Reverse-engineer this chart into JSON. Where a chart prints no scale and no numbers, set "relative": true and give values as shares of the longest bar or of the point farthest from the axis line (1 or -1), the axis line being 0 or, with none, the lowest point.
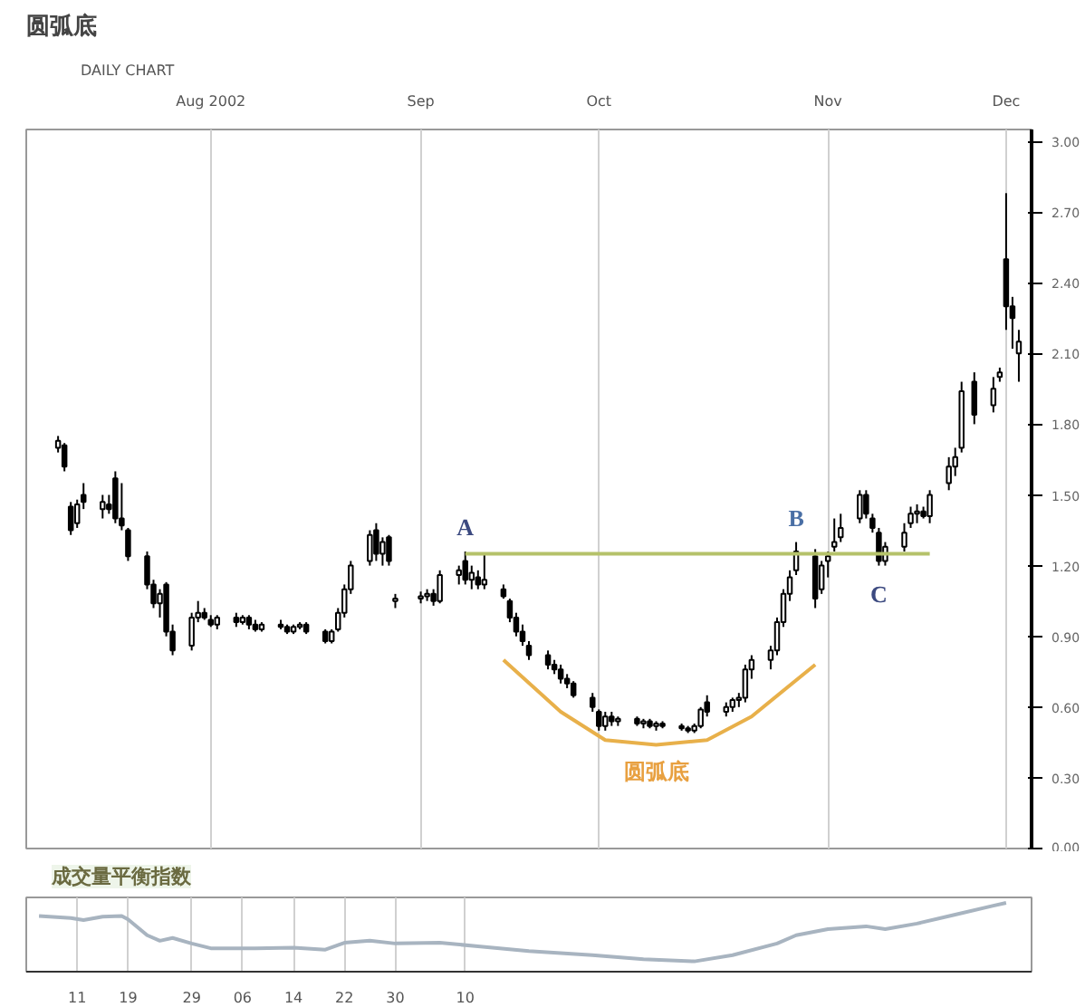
{
  "chart_data": [
    {
      "type": "candlestick",
      "title": "圆弧底",
      "subtitle": "DAILY CHART",
      "color": "#000000",
      "x": [
        "2002-07-08",
        "2002-07-09",
        "2002-07-10",
        "2002-07-11",
        "2002-07-12",
        "2002-07-15",
        "2002-07-16",
        "2002-07-17",
        "2002-07-18",
        "2002-07-19",
        "2002-07-22",
        "2002-07-23",
        "2002-07-24",
        "2002-07-25",
        "2002-07-26",
        "2002-07-29",
        "2002-07-30",
        "2002-07-31",
        "2002-08-01",
        "2002-08-02",
        "2002-08-05",
        "2002-08-06",
        "2002-08-07",
        "2002-08-08",
        "2002-08-09",
        "2002-08-12",
        "2002-08-13",
        "2002-08-14",
        "2002-08-15",
        "2002-08-16",
        "2002-08-19",
        "2002-08-20",
        "2002-08-21",
        "2002-08-22",
        "2002-08-23",
        "2002-08-26",
        "2002-08-27",
        "2002-08-28",
        "2002-08-29",
        "2002-08-30",
        "2002-09-03",
        "2002-09-04",
        "2002-09-05",
        "2002-09-06",
        "2002-09-09",
        "2002-09-10",
        "2002-09-11",
        "2002-09-12",
        "2002-09-13",
        "2002-09-16",
        "2002-09-17",
        "2002-09-18",
        "2002-09-19",
        "2002-09-20",
        "2002-09-23",
        "2002-09-24",
        "2002-09-25",
        "2002-09-26",
        "2002-09-27",
        "2002-09-30",
        "2002-10-01",
        "2002-10-02",
        "2002-10-03",
        "2002-10-04",
        "2002-10-07",
        "2002-10-08",
        "2002-10-09",
        "2002-10-10",
        "2002-10-11",
        "2002-10-14",
        "2002-10-15",
        "2002-10-16",
        "2002-10-17",
        "2002-10-18",
        "2002-10-21",
        "2002-10-22",
        "2002-10-23",
        "2002-10-24",
        "2002-10-25",
        "2002-10-28",
        "2002-10-29",
        "2002-10-30",
        "2002-10-31",
        "2002-11-01",
        "2002-11-04",
        "2002-11-05",
        "2002-11-06",
        "2002-11-07",
        "2002-11-08",
        "2002-11-11",
        "2002-11-12",
        "2002-11-13",
        "2002-11-14",
        "2002-11-15",
        "2002-11-18",
        "2002-11-19",
        "2002-11-20",
        "2002-11-21",
        "2002-11-22",
        "2002-11-25",
        "2002-11-26",
        "2002-11-27",
        "2002-11-29",
        "2002-12-02",
        "2002-12-03",
        "2002-12-04",
        "2002-12-05",
        "2002-12-06"
      ],
      "ohlc": [
        [
          1.7,
          1.75,
          1.68,
          1.73
        ],
        [
          1.71,
          1.72,
          1.6,
          1.62
        ],
        [
          1.45,
          1.47,
          1.33,
          1.35
        ],
        [
          1.38,
          1.48,
          1.36,
          1.46
        ],
        [
          1.5,
          1.55,
          1.44,
          1.47
        ],
        [
          1.44,
          1.5,
          1.4,
          1.47
        ],
        [
          1.46,
          1.5,
          1.42,
          1.44
        ],
        [
          1.57,
          1.6,
          1.38,
          1.4
        ],
        [
          1.4,
          1.55,
          1.35,
          1.37
        ],
        [
          1.35,
          1.36,
          1.22,
          1.24
        ],
        [
          1.24,
          1.26,
          1.1,
          1.12
        ],
        [
          1.12,
          1.14,
          1.02,
          1.04
        ],
        [
          1.04,
          1.1,
          0.98,
          1.08
        ],
        [
          1.12,
          1.13,
          0.9,
          0.92
        ],
        [
          0.92,
          0.95,
          0.82,
          0.84
        ],
        [
          0.86,
          1.0,
          0.84,
          0.98
        ],
        [
          0.98,
          1.05,
          0.96,
          1.0
        ],
        [
          1.0,
          1.02,
          0.97,
          0.98
        ],
        [
          0.97,
          0.99,
          0.94,
          0.95
        ],
        [
          0.95,
          0.99,
          0.93,
          0.98
        ],
        [
          0.98,
          1.0,
          0.94,
          0.96
        ],
        [
          0.96,
          0.99,
          0.95,
          0.98
        ],
        [
          0.98,
          0.99,
          0.93,
          0.95
        ],
        [
          0.95,
          0.97,
          0.92,
          0.93
        ],
        [
          0.93,
          0.96,
          0.92,
          0.95
        ],
        [
          0.95,
          0.97,
          0.93,
          0.94
        ],
        [
          0.94,
          0.95,
          0.91,
          0.92
        ],
        [
          0.92,
          0.95,
          0.91,
          0.94
        ],
        [
          0.94,
          0.96,
          0.93,
          0.95
        ],
        [
          0.95,
          0.96,
          0.91,
          0.92
        ],
        [
          0.92,
          0.93,
          0.87,
          0.88
        ],
        [
          0.88,
          0.93,
          0.87,
          0.92
        ],
        [
          0.93,
          1.02,
          0.92,
          1.0
        ],
        [
          1.0,
          1.12,
          0.98,
          1.1
        ],
        [
          1.1,
          1.22,
          1.08,
          1.2
        ],
        [
          1.22,
          1.35,
          1.2,
          1.33
        ],
        [
          1.35,
          1.38,
          1.22,
          1.25
        ],
        [
          1.25,
          1.32,
          1.2,
          1.3
        ],
        [
          1.32,
          1.33,
          1.2,
          1.22
        ],
        [
          1.05,
          1.08,
          1.02,
          1.06
        ],
        [
          1.06,
          1.09,
          1.04,
          1.07
        ],
        [
          1.07,
          1.1,
          1.05,
          1.08
        ],
        [
          1.08,
          1.1,
          1.03,
          1.05
        ],
        [
          1.05,
          1.18,
          1.04,
          1.16
        ],
        [
          1.16,
          1.2,
          1.12,
          1.18
        ],
        [
          1.22,
          1.26,
          1.12,
          1.14
        ],
        [
          1.14,
          1.2,
          1.1,
          1.17
        ],
        [
          1.15,
          1.18,
          1.1,
          1.12
        ],
        [
          1.12,
          1.25,
          1.1,
          1.14
        ],
        [
          1.1,
          1.12,
          1.06,
          1.07
        ],
        [
          1.05,
          1.06,
          0.96,
          0.98
        ],
        [
          0.98,
          1.0,
          0.9,
          0.92
        ],
        [
          0.92,
          0.95,
          0.86,
          0.88
        ],
        [
          0.86,
          0.88,
          0.8,
          0.82
        ],
        [
          0.82,
          0.84,
          0.76,
          0.78
        ],
        [
          0.78,
          0.8,
          0.74,
          0.76
        ],
        [
          0.76,
          0.78,
          0.7,
          0.72
        ],
        [
          0.72,
          0.74,
          0.68,
          0.7
        ],
        [
          0.7,
          0.71,
          0.64,
          0.65
        ],
        [
          0.64,
          0.66,
          0.58,
          0.6
        ],
        [
          0.58,
          0.59,
          0.5,
          0.52
        ],
        [
          0.52,
          0.58,
          0.5,
          0.56
        ],
        [
          0.56,
          0.58,
          0.52,
          0.54
        ],
        [
          0.54,
          0.56,
          0.52,
          0.55
        ],
        [
          0.55,
          0.56,
          0.52,
          0.53
        ],
        [
          0.53,
          0.55,
          0.51,
          0.54
        ],
        [
          0.54,
          0.55,
          0.51,
          0.52
        ],
        [
          0.52,
          0.54,
          0.5,
          0.53
        ],
        [
          0.53,
          0.54,
          0.51,
          0.52
        ],
        [
          0.52,
          0.53,
          0.5,
          0.51
        ],
        [
          0.51,
          0.52,
          0.49,
          0.5
        ],
        [
          0.5,
          0.53,
          0.49,
          0.52
        ],
        [
          0.52,
          0.6,
          0.51,
          0.59
        ],
        [
          0.62,
          0.65,
          0.56,
          0.58
        ],
        [
          0.58,
          0.62,
          0.56,
          0.6
        ],
        [
          0.6,
          0.64,
          0.58,
          0.63
        ],
        [
          0.63,
          0.66,
          0.6,
          0.64
        ],
        [
          0.64,
          0.78,
          0.62,
          0.76
        ],
        [
          0.76,
          0.82,
          0.72,
          0.8
        ],
        [
          0.8,
          0.86,
          0.76,
          0.84
        ],
        [
          0.84,
          0.98,
          0.82,
          0.96
        ],
        [
          0.96,
          1.1,
          0.94,
          1.08
        ],
        [
          1.08,
          1.18,
          1.05,
          1.15
        ],
        [
          1.18,
          1.3,
          1.16,
          1.26
        ],
        [
          1.24,
          1.27,
          1.02,
          1.06
        ],
        [
          1.1,
          1.22,
          1.08,
          1.2
        ],
        [
          1.22,
          1.26,
          1.15,
          1.24
        ],
        [
          1.28,
          1.4,
          1.26,
          1.3
        ],
        [
          1.32,
          1.42,
          1.3,
          1.36
        ],
        [
          1.4,
          1.52,
          1.38,
          1.5
        ],
        [
          1.5,
          1.52,
          1.4,
          1.42
        ],
        [
          1.4,
          1.42,
          1.34,
          1.36
        ],
        [
          1.34,
          1.36,
          1.2,
          1.22
        ],
        [
          1.22,
          1.3,
          1.2,
          1.28
        ],
        [
          1.28,
          1.38,
          1.26,
          1.34
        ],
        [
          1.38,
          1.45,
          1.36,
          1.42
        ],
        [
          1.42,
          1.46,
          1.38,
          1.43
        ],
        [
          1.43,
          1.45,
          1.4,
          1.41
        ],
        [
          1.41,
          1.52,
          1.38,
          1.5
        ],
        [
          1.55,
          1.66,
          1.52,
          1.62
        ],
        [
          1.62,
          1.7,
          1.58,
          1.66
        ],
        [
          1.7,
          1.98,
          1.68,
          1.94
        ],
        [
          1.98,
          2.02,
          1.8,
          1.84
        ],
        [
          1.88,
          2.0,
          1.85,
          1.95
        ],
        [
          2.0,
          2.04,
          1.98,
          2.02
        ],
        [
          2.5,
          2.78,
          2.2,
          2.3
        ],
        [
          2.3,
          2.34,
          2.12,
          2.25
        ],
        [
          2.1,
          2.2,
          1.98,
          2.15
        ]
      ],
      "series": [
        {
          "type": "line",
          "color": "#b5c26a",
          "x": [
            "2002-09-10",
            "2002-11-22"
          ],
          "values": [
            1.25,
            1.25
          ]
        },
        {
          "type": "line",
          "color": "#e8b04a",
          "x": [
            "2002-09-16",
            "2002-09-25",
            "2002-10-02",
            "2002-10-10",
            "2002-10-18",
            "2002-10-25",
            "2002-11-04"
          ],
          "values": [
            0.8,
            0.58,
            0.46,
            0.44,
            0.46,
            0.56,
            0.78
          ]
        }
      ],
      "annotations": [
        {
          "text": "A",
          "x": "2002-09-10",
          "y": 1.26
        },
        {
          "text": "B",
          "x": "2002-11-01",
          "y": 1.3
        },
        {
          "text": "C",
          "x": "2002-11-14",
          "y": 1.2
        },
        {
          "text": "圆弧底",
          "x": "2002-10-10",
          "y": 0.44
        }
      ],
      "xlim": [
        "2002-07-03",
        "2002-12-08"
      ],
      "xticks": [
        {
          "value": "2002-08-01",
          "label": "Aug 2002"
        },
        {
          "value": "2002-09-03",
          "label": "Sep"
        },
        {
          "value": "2002-10-01",
          "label": "Oct"
        },
        {
          "value": "2002-11-06",
          "label": "Nov"
        },
        {
          "value": "2002-12-04",
          "label": "Dec"
        }
      ],
      "ylim": [
        0.0,
        3.05
      ],
      "yticks": [
        {
          "value": 0,
          "label": "0.00"
        },
        {
          "value": 0.3,
          "label": "0.30"
        },
        {
          "value": 0.6,
          "label": "0.60"
        },
        {
          "value": 0.9,
          "label": "0.90"
        },
        {
          "value": 1.2,
          "label": "1.20"
        },
        {
          "value": 1.5,
          "label": "1.50"
        },
        {
          "value": 1.8,
          "label": "1.80"
        },
        {
          "value": 2.1,
          "label": "2.10"
        },
        {
          "value": 2.4,
          "label": "2.40"
        },
        {
          "value": 2.7,
          "label": "2.70"
        },
        {
          "value": 3.0,
          "label": "3.00"
        }
      ],
      "grid": "x"
    },
    {
      "type": "line",
      "title": "成交量平衡指数",
      "relative": true,
      "color": "#a8b4c0",
      "x": [
        "2002-07-05",
        "2002-07-10",
        "2002-07-12",
        "2002-07-15",
        "2002-07-18",
        "2002-07-19",
        "2002-07-22",
        "2002-07-24",
        "2002-07-26",
        "2002-07-29",
        "2002-08-01",
        "2002-08-08",
        "2002-08-14",
        "2002-08-19",
        "2002-08-22",
        "2002-08-26",
        "2002-08-30",
        "2002-09-06",
        "2002-09-12",
        "2002-09-20",
        "2002-09-30",
        "2002-10-08",
        "2002-10-16",
        "2002-10-22",
        "2002-10-29",
        "2002-11-01",
        "2002-11-06",
        "2002-11-12",
        "2002-11-15",
        "2002-11-20",
        "2002-11-26",
        "2002-12-02",
        "2002-12-04"
      ],
      "values": [
        0.81,
        0.78,
        0.75,
        0.8,
        0.81,
        0.76,
        0.53,
        0.45,
        0.49,
        0.41,
        0.34,
        0.34,
        0.35,
        0.32,
        0.42,
        0.45,
        0.41,
        0.42,
        0.37,
        0.3,
        0.24,
        0.18,
        0.15,
        0.24,
        0.41,
        0.53,
        0.62,
        0.66,
        0.62,
        0.7,
        0.83,
        0.96,
        1.0
      ],
      "xlim": [
        "2002-07-03",
        "2002-12-08"
      ],
      "xticks": [
        {
          "value": "2002-07-11",
          "label": "11"
        },
        {
          "value": "2002-07-19",
          "label": "19"
        },
        {
          "value": "2002-07-29",
          "label": "29"
        },
        {
          "value": "2002-08-06",
          "label": "06"
        },
        {
          "value": "2002-08-14",
          "label": "14"
        },
        {
          "value": "2002-08-22",
          "label": "22"
        },
        {
          "value": "2002-08-30",
          "label": "30"
        },
        {
          "value": "2002-09-10",
          "label": "10"
        }
      ],
      "tick_labels": "x",
      "grid": "x"
    }
  ]
}
